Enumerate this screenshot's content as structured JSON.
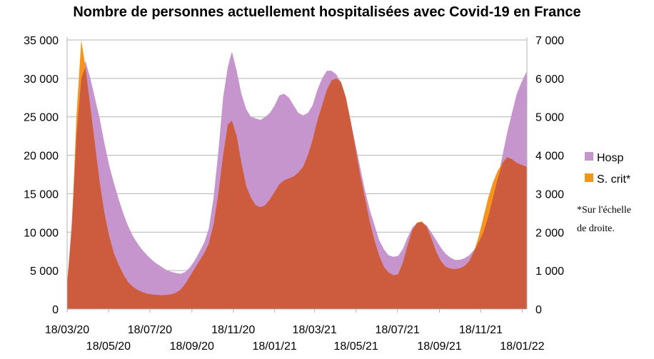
{
  "chart_data": {
    "type": "area",
    "title": "Nombre de personnes actuellement hospitalisées avec Covid-19 en France",
    "y_left": {
      "ticks": [
        "0",
        "5 000",
        "10 000",
        "15 000",
        "20 000",
        "25 000",
        "30 000",
        "35 000"
      ],
      "range": [
        0,
        35000
      ]
    },
    "y_right": {
      "ticks": [
        "0",
        "1 000",
        "2 000",
        "3 000",
        "4 000",
        "5 000",
        "6 000",
        "7 000"
      ],
      "range": [
        0,
        7000
      ]
    },
    "x_ticks_top": [
      "18/03/20",
      "18/07/20",
      "18/11/20",
      "18/03/21",
      "18/07/21",
      "18/11/21"
    ],
    "x_ticks_bottom": [
      "18/05/20",
      "18/09/20",
      "18/01/21",
      "18/05/21",
      "18/09/21",
      "18/01/22"
    ],
    "x_range": [
      "2020-03-18",
      "2022-01-25"
    ],
    "legend_position": "right",
    "grid": "horizontal",
    "note": [
      "*Sur l'échelle",
      "de droite."
    ],
    "series": [
      {
        "name": "Hosp",
        "axis": "left",
        "color": "#c795cd",
        "points": [
          [
            "2020-03-18",
            2972
          ],
          [
            "2020-03-25",
            11539
          ],
          [
            "2020-04-01",
            22757
          ],
          [
            "2020-04-08",
            30008
          ],
          [
            "2020-04-14",
            32292
          ],
          [
            "2020-04-21",
            30106
          ],
          [
            "2020-04-28",
            27484
          ],
          [
            "2020-05-05",
            24775
          ],
          [
            "2020-05-12",
            21595
          ],
          [
            "2020-05-19",
            18700
          ],
          [
            "2020-05-26",
            16400
          ],
          [
            "2020-06-02",
            14300
          ],
          [
            "2020-06-09",
            12400
          ],
          [
            "2020-06-16",
            10800
          ],
          [
            "2020-06-23",
            9500
          ],
          [
            "2020-06-30",
            8500
          ],
          [
            "2020-07-07",
            7700
          ],
          [
            "2020-07-14",
            7000
          ],
          [
            "2020-07-21",
            6400
          ],
          [
            "2020-07-28",
            5900
          ],
          [
            "2020-08-04",
            5500
          ],
          [
            "2020-08-11",
            5100
          ],
          [
            "2020-08-18",
            4850
          ],
          [
            "2020-08-25",
            4700
          ],
          [
            "2020-09-01",
            4600
          ],
          [
            "2020-09-08",
            4800
          ],
          [
            "2020-09-15",
            5400
          ],
          [
            "2020-09-22",
            6300
          ],
          [
            "2020-09-29",
            7400
          ],
          [
            "2020-10-06",
            8600
          ],
          [
            "2020-10-13",
            10500
          ],
          [
            "2020-10-20",
            14500
          ],
          [
            "2020-10-27",
            20500
          ],
          [
            "2020-11-03",
            27500
          ],
          [
            "2020-11-10",
            31500
          ],
          [
            "2020-11-16",
            33500
          ],
          [
            "2020-11-23",
            31000
          ],
          [
            "2020-11-30",
            28000
          ],
          [
            "2020-12-07",
            26000
          ],
          [
            "2020-12-14",
            25000
          ],
          [
            "2020-12-21",
            24800
          ],
          [
            "2020-12-28",
            24600
          ],
          [
            "2021-01-04",
            25000
          ],
          [
            "2021-01-11",
            25500
          ],
          [
            "2021-01-18",
            26500
          ],
          [
            "2021-01-25",
            27800
          ],
          [
            "2021-02-01",
            28000
          ],
          [
            "2021-02-08",
            27500
          ],
          [
            "2021-02-15",
            26500
          ],
          [
            "2021-02-22",
            25500
          ],
          [
            "2021-03-01",
            25200
          ],
          [
            "2021-03-08",
            25500
          ],
          [
            "2021-03-15",
            26500
          ],
          [
            "2021-03-22",
            28500
          ],
          [
            "2021-03-29",
            30000
          ],
          [
            "2021-04-05",
            31000
          ],
          [
            "2021-04-12",
            31000
          ],
          [
            "2021-04-19",
            30500
          ],
          [
            "2021-04-26",
            29500
          ],
          [
            "2021-05-03",
            27500
          ],
          [
            "2021-05-10",
            24500
          ],
          [
            "2021-05-17",
            21500
          ],
          [
            "2021-05-24",
            18500
          ],
          [
            "2021-05-31",
            15500
          ],
          [
            "2021-06-07",
            13000
          ],
          [
            "2021-06-14",
            11000
          ],
          [
            "2021-06-21",
            9000
          ],
          [
            "2021-06-28",
            7800
          ],
          [
            "2021-07-05",
            7000
          ],
          [
            "2021-07-12",
            6800
          ],
          [
            "2021-07-19",
            6900
          ],
          [
            "2021-07-26",
            7800
          ],
          [
            "2021-08-02",
            9300
          ],
          [
            "2021-08-09",
            10600
          ],
          [
            "2021-08-16",
            11200
          ],
          [
            "2021-08-23",
            11300
          ],
          [
            "2021-08-30",
            10900
          ],
          [
            "2021-09-06",
            10000
          ],
          [
            "2021-09-13",
            9000
          ],
          [
            "2021-09-20",
            8000
          ],
          [
            "2021-09-27",
            7200
          ],
          [
            "2021-10-04",
            6700
          ],
          [
            "2021-10-11",
            6400
          ],
          [
            "2021-10-18",
            6400
          ],
          [
            "2021-10-25",
            6600
          ],
          [
            "2021-11-01",
            7000
          ],
          [
            "2021-11-08",
            7700
          ],
          [
            "2021-11-15",
            8700
          ],
          [
            "2021-11-22",
            10000
          ],
          [
            "2021-11-29",
            12000
          ],
          [
            "2021-12-06",
            14500
          ],
          [
            "2021-12-13",
            17000
          ],
          [
            "2021-12-20",
            20000
          ],
          [
            "2021-12-27",
            23000
          ],
          [
            "2022-01-03",
            25500
          ],
          [
            "2022-01-10",
            28000
          ],
          [
            "2022-01-17",
            29500
          ],
          [
            "2022-01-25",
            31000
          ]
        ]
      },
      {
        "name": "S. crit*",
        "axis": "right",
        "color": "#f7941d",
        "points": [
          [
            "2020-03-18",
            700
          ],
          [
            "2020-03-25",
            2100
          ],
          [
            "2020-04-01",
            5100
          ],
          [
            "2020-04-08",
            7000
          ],
          [
            "2020-04-14",
            6300
          ],
          [
            "2020-04-21",
            5300
          ],
          [
            "2020-04-28",
            4300
          ],
          [
            "2020-05-05",
            3300
          ],
          [
            "2020-05-12",
            2500
          ],
          [
            "2020-05-19",
            1900
          ],
          [
            "2020-05-26",
            1450
          ],
          [
            "2020-06-02",
            1150
          ],
          [
            "2020-06-09",
            900
          ],
          [
            "2020-06-16",
            700
          ],
          [
            "2020-06-23",
            580
          ],
          [
            "2020-06-30",
            500
          ],
          [
            "2020-07-07",
            440
          ],
          [
            "2020-07-14",
            400
          ],
          [
            "2020-07-21",
            380
          ],
          [
            "2020-07-28",
            370
          ],
          [
            "2020-08-04",
            360
          ],
          [
            "2020-08-11",
            365
          ],
          [
            "2020-08-18",
            380
          ],
          [
            "2020-08-25",
            420
          ],
          [
            "2020-09-01",
            500
          ],
          [
            "2020-09-08",
            650
          ],
          [
            "2020-09-15",
            850
          ],
          [
            "2020-09-22",
            1050
          ],
          [
            "2020-09-29",
            1250
          ],
          [
            "2020-10-06",
            1450
          ],
          [
            "2020-10-13",
            1700
          ],
          [
            "2020-10-20",
            2200
          ],
          [
            "2020-10-27",
            3000
          ],
          [
            "2020-11-03",
            4000
          ],
          [
            "2020-11-10",
            4800
          ],
          [
            "2020-11-16",
            4900
          ],
          [
            "2020-11-23",
            4500
          ],
          [
            "2020-11-30",
            3800
          ],
          [
            "2020-12-07",
            3200
          ],
          [
            "2020-12-14",
            2900
          ],
          [
            "2020-12-21",
            2700
          ],
          [
            "2020-12-28",
            2650
          ],
          [
            "2021-01-04",
            2700
          ],
          [
            "2021-01-11",
            2850
          ],
          [
            "2021-01-18",
            3050
          ],
          [
            "2021-01-25",
            3250
          ],
          [
            "2021-02-01",
            3350
          ],
          [
            "2021-02-08",
            3400
          ],
          [
            "2021-02-15",
            3450
          ],
          [
            "2021-02-22",
            3550
          ],
          [
            "2021-03-01",
            3700
          ],
          [
            "2021-03-08",
            4000
          ],
          [
            "2021-03-15",
            4400
          ],
          [
            "2021-03-22",
            4900
          ],
          [
            "2021-03-29",
            5300
          ],
          [
            "2021-04-05",
            5700
          ],
          [
            "2021-04-12",
            5950
          ],
          [
            "2021-04-19",
            6000
          ],
          [
            "2021-04-26",
            5900
          ],
          [
            "2021-05-03",
            5500
          ],
          [
            "2021-05-10",
            4900
          ],
          [
            "2021-05-17",
            4200
          ],
          [
            "2021-05-24",
            3500
          ],
          [
            "2021-05-31",
            2900
          ],
          [
            "2021-06-07",
            2300
          ],
          [
            "2021-06-14",
            1800
          ],
          [
            "2021-06-21",
            1400
          ],
          [
            "2021-06-28",
            1100
          ],
          [
            "2021-07-05",
            950
          ],
          [
            "2021-07-12",
            880
          ],
          [
            "2021-07-19",
            900
          ],
          [
            "2021-07-26",
            1200
          ],
          [
            "2021-08-02",
            1650
          ],
          [
            "2021-08-09",
            2050
          ],
          [
            "2021-08-16",
            2250
          ],
          [
            "2021-08-23",
            2280
          ],
          [
            "2021-08-30",
            2150
          ],
          [
            "2021-09-06",
            1850
          ],
          [
            "2021-09-13",
            1500
          ],
          [
            "2021-09-20",
            1250
          ],
          [
            "2021-09-27",
            1100
          ],
          [
            "2021-10-04",
            1050
          ],
          [
            "2021-10-11",
            1040
          ],
          [
            "2021-10-18",
            1060
          ],
          [
            "2021-10-25",
            1120
          ],
          [
            "2021-11-01",
            1250
          ],
          [
            "2021-11-08",
            1500
          ],
          [
            "2021-11-15",
            1900
          ],
          [
            "2021-11-22",
            2400
          ],
          [
            "2021-11-29",
            2900
          ],
          [
            "2021-12-06",
            3300
          ],
          [
            "2021-12-13",
            3600
          ],
          [
            "2021-12-20",
            3800
          ],
          [
            "2021-12-27",
            3950
          ],
          [
            "2022-01-03",
            3900
          ],
          [
            "2022-01-10",
            3800
          ],
          [
            "2022-01-17",
            3750
          ],
          [
            "2022-01-25",
            3700
          ]
        ]
      }
    ]
  }
}
